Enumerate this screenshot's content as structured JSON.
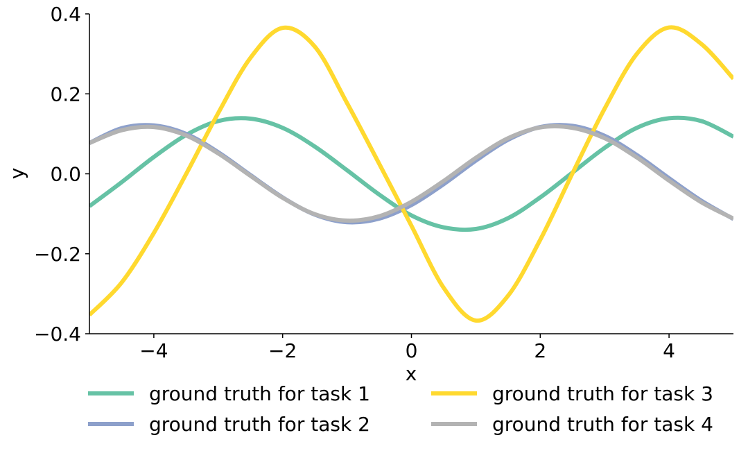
{
  "chart_data": {
    "type": "line",
    "xlabel": "x",
    "ylabel": "y",
    "xlim": [
      -5,
      5
    ],
    "ylim": [
      -0.4,
      0.4
    ],
    "xticks": [
      -4,
      -2,
      0,
      2,
      4
    ],
    "xtick_labels": [
      "−4",
      "−2",
      "0",
      "2",
      "4"
    ],
    "yticks": [
      -0.4,
      -0.2,
      0.0,
      0.2,
      0.4
    ],
    "ytick_labels": [
      "−0.4",
      "−0.2",
      "0.0",
      "0.2",
      "0.4"
    ],
    "grid": false,
    "legend_position": "bottom",
    "legend_columns": 2,
    "series": [
      {
        "name": "ground truth for task 1",
        "color": "#66c2a5",
        "x": [
          -5,
          -4.5,
          -4,
          -3.5,
          -3,
          -2.5,
          -2,
          -1.5,
          -1,
          -0.5,
          0,
          0.5,
          1,
          1.5,
          2,
          2.5,
          3,
          3.5,
          4,
          4.5,
          5
        ],
        "y": [
          -0.081,
          -0.021,
          0.042,
          0.097,
          0.132,
          0.138,
          0.115,
          0.068,
          0.009,
          -0.052,
          -0.104,
          -0.134,
          -0.138,
          -0.111,
          -0.059,
          0.003,
          0.065,
          0.115,
          0.139,
          0.132,
          0.093
        ]
      },
      {
        "name": "ground truth for task 2",
        "color": "#8da0cb",
        "x": [
          -5,
          -4.5,
          -4,
          -3.5,
          -3,
          -2.5,
          -2,
          -1.5,
          -1,
          -0.5,
          0,
          0.5,
          1,
          1.5,
          2,
          2.5,
          3,
          3.5,
          4,
          4.5,
          5
        ],
        "y": [
          0.077,
          0.114,
          0.121,
          0.1,
          0.054,
          -0.003,
          -0.059,
          -0.102,
          -0.121,
          -0.112,
          -0.078,
          -0.026,
          0.033,
          0.085,
          0.117,
          0.12,
          0.095,
          0.047,
          -0.011,
          -0.067,
          -0.113
        ]
      },
      {
        "name": "ground truth for task 3",
        "color": "#ffd92f",
        "x": [
          -5,
          -4.5,
          -4,
          -3.5,
          -3,
          -2.5,
          -2,
          -1.5,
          -1,
          -0.5,
          0,
          0.5,
          1,
          1.5,
          2,
          2.5,
          3,
          3.5,
          4,
          4.5,
          5
        ],
        "y": [
          -0.353,
          -0.272,
          -0.148,
          -0.001,
          0.152,
          0.29,
          0.365,
          0.318,
          0.177,
          0.025,
          -0.13,
          -0.285,
          -0.367,
          -0.305,
          -0.165,
          0.001,
          0.163,
          0.3,
          0.366,
          0.325,
          0.238
        ]
      },
      {
        "name": "ground truth for task 4",
        "color": "#b3b3b3",
        "x": [
          -5,
          -4.5,
          -4,
          -3.5,
          -3,
          -2.5,
          -2,
          -1.5,
          -1,
          -0.5,
          0,
          0.5,
          1,
          1.5,
          2,
          2.5,
          3,
          3.5,
          4,
          4.5,
          5
        ],
        "y": [
          0.077,
          0.109,
          0.117,
          0.096,
          0.051,
          -0.005,
          -0.06,
          -0.101,
          -0.117,
          -0.106,
          -0.07,
          -0.018,
          0.04,
          0.089,
          0.116,
          0.115,
          0.089,
          0.041,
          -0.017,
          -0.071,
          -0.112
        ]
      }
    ]
  }
}
